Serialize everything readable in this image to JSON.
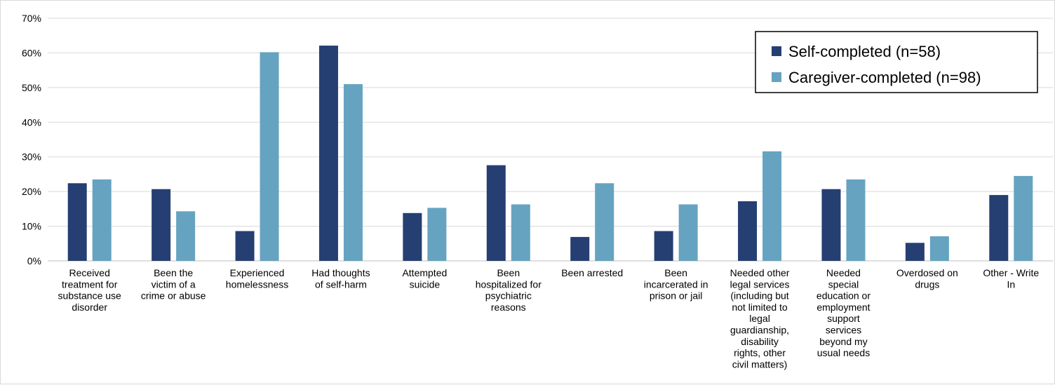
{
  "chart_data": {
    "type": "bar",
    "categories": [
      [
        "Received",
        "treatment for",
        "substance use",
        "disorder"
      ],
      [
        "Been the",
        "victim of a",
        "crime or abuse"
      ],
      [
        "Experienced",
        "homelessness"
      ],
      [
        "Had thoughts",
        "of self-harm"
      ],
      [
        "Attempted",
        "suicide"
      ],
      [
        "Been",
        "hospitalized for",
        "psychiatric",
        "reasons"
      ],
      [
        "Been arrested"
      ],
      [
        "Been",
        "incarcerated in",
        "prison or jail"
      ],
      [
        "Needed other",
        "legal services",
        "(including but",
        "not limited to",
        "legal",
        "guardianship,",
        "disability",
        "rights, other",
        "civil matters)"
      ],
      [
        "Needed",
        "special",
        "education or",
        "employment",
        "support",
        "services",
        "beyond my",
        "usual needs"
      ],
      [
        "Overdosed on",
        "drugs"
      ],
      [
        "Other - Write",
        "In"
      ]
    ],
    "series": [
      {
        "name": "Self-completed (n=58)",
        "color": "#253f72",
        "values": [
          22.4,
          20.7,
          8.6,
          62.1,
          13.8,
          27.6,
          6.9,
          8.6,
          17.2,
          20.7,
          5.2,
          19.0
        ]
      },
      {
        "name": "Caregiver-completed (n=98)",
        "color": "#66a3c0",
        "values": [
          23.5,
          14.3,
          60.2,
          51.0,
          15.3,
          16.3,
          22.4,
          16.3,
          31.6,
          23.5,
          7.1,
          24.5
        ]
      }
    ],
    "y_ticks": [
      "0%",
      "10%",
      "20%",
      "30%",
      "40%",
      "50%",
      "60%",
      "70%"
    ],
    "ylim": [
      0,
      70
    ],
    "grid": true,
    "legend_position": "top-right"
  }
}
